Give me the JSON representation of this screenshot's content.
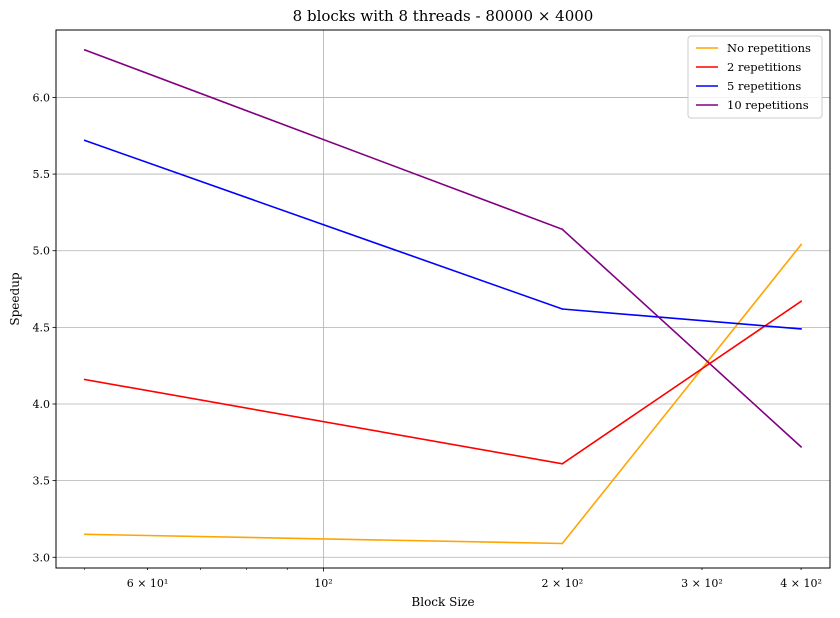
{
  "chart_data": {
    "type": "line",
    "title": "8 blocks with 8 threads - 80000 × 4000",
    "xlabel": "Block Size",
    "ylabel": "Speedup",
    "xscale": "log",
    "xlim": [
      46,
      435
    ],
    "ylim": [
      2.93,
      6.44
    ],
    "x": [
      50,
      200,
      400
    ],
    "x_ticks": [
      {
        "value": 60,
        "label": "6 × 10¹"
      },
      {
        "value": 100,
        "label": "10²"
      },
      {
        "value": 200,
        "label": "2 × 10²"
      },
      {
        "value": 300,
        "label": "3 × 10²"
      },
      {
        "value": 400,
        "label": "4 × 10²"
      }
    ],
    "y_ticks": [
      {
        "value": 3.0,
        "label": "3.0"
      },
      {
        "value": 3.5,
        "label": "3.5"
      },
      {
        "value": 4.0,
        "label": "4.0"
      },
      {
        "value": 4.5,
        "label": "4.5"
      },
      {
        "value": 5.0,
        "label": "5.0"
      },
      {
        "value": 5.5,
        "label": "5.5"
      },
      {
        "value": 6.0,
        "label": "6.0"
      }
    ],
    "grid": true,
    "legend_position": "top-right",
    "series": [
      {
        "name": "No repetitions",
        "color": "#ffa500",
        "values": [
          3.15,
          3.09,
          5.04
        ]
      },
      {
        "name": "2 repetitions",
        "color": "#ff0000",
        "values": [
          4.16,
          3.61,
          4.67
        ]
      },
      {
        "name": "5 repetitions",
        "color": "#0000ff",
        "values": [
          5.72,
          4.62,
          4.49
        ]
      },
      {
        "name": "10 repetitions",
        "color": "#800080",
        "values": [
          6.31,
          5.14,
          3.72
        ]
      }
    ]
  }
}
